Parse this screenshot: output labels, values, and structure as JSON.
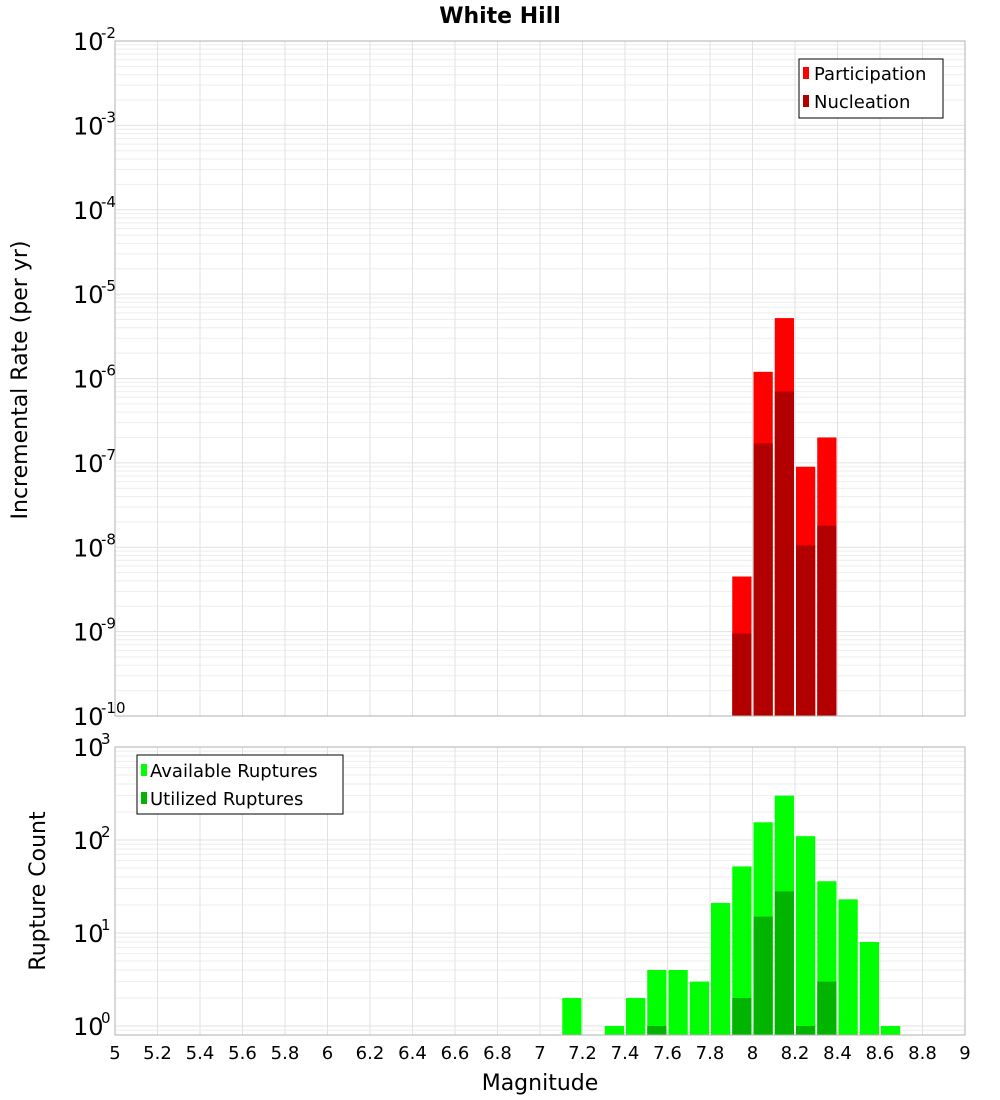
{
  "chart_data": [
    {
      "type": "bar",
      "title": "White Hill",
      "xlabel": "",
      "ylabel": "Incremental Rate (per yr)",
      "yscale": "log",
      "ylim": [
        1e-10,
        0.01
      ],
      "xlim": [
        5,
        9
      ],
      "ytick_exponents": [
        "-10",
        "-9",
        "-8",
        "-7",
        "-6",
        "-5",
        "-4",
        "-3",
        "-2"
      ],
      "legend": {
        "placement": "top-right",
        "entries": [
          "Participation",
          "Nucleation"
        ]
      },
      "bin_width": 0.1,
      "series": [
        {
          "name": "Participation",
          "color": "#ff0000",
          "x": [
            7.95,
            8.05,
            8.15,
            8.25,
            8.35
          ],
          "values": [
            4.5e-09,
            1.2e-06,
            5.2e-06,
            9e-08,
            2e-07
          ]
        },
        {
          "name": "Nucleation",
          "color": "#b20000",
          "x": [
            7.95,
            8.05,
            8.15,
            8.25,
            8.35
          ],
          "values": [
            9.5e-10,
            1.7e-07,
            7e-07,
            1.05e-08,
            1.8e-08
          ]
        }
      ]
    },
    {
      "type": "bar",
      "title": "",
      "xlabel": "Magnitude",
      "ylabel": "Rupture Count",
      "yscale": "log",
      "ylim": [
        0.8,
        1000
      ],
      "xlim": [
        5,
        9
      ],
      "ytick_exponents": [
        "0",
        "1",
        "2",
        "3"
      ],
      "xticks": [
        "5",
        "5.2",
        "5.4",
        "5.6",
        "5.8",
        "6",
        "6.2",
        "6.4",
        "6.6",
        "6.8",
        "7",
        "7.2",
        "7.4",
        "7.6",
        "7.8",
        "8",
        "8.2",
        "8.4",
        "8.6",
        "8.8",
        "9"
      ],
      "legend": {
        "placement": "top-left",
        "entries": [
          "Available Ruptures",
          "Utilized Ruptures"
        ]
      },
      "bin_width": 0.1,
      "series": [
        {
          "name": "Available Ruptures",
          "color": "#00ff00",
          "x": [
            7.15,
            7.35,
            7.45,
            7.55,
            7.65,
            7.75,
            7.85,
            7.95,
            8.05,
            8.15,
            8.25,
            8.35,
            8.45,
            8.55,
            8.65
          ],
          "values": [
            2,
            1,
            2,
            4,
            4,
            3,
            21,
            52,
            155,
            300,
            110,
            36,
            23,
            8,
            1
          ]
        },
        {
          "name": "Utilized Ruptures",
          "color": "#00b400",
          "x": [
            7.55,
            7.95,
            8.05,
            8.15,
            8.25,
            8.35
          ],
          "values": [
            1,
            2,
            15,
            28,
            1,
            3
          ]
        }
      ]
    }
  ]
}
